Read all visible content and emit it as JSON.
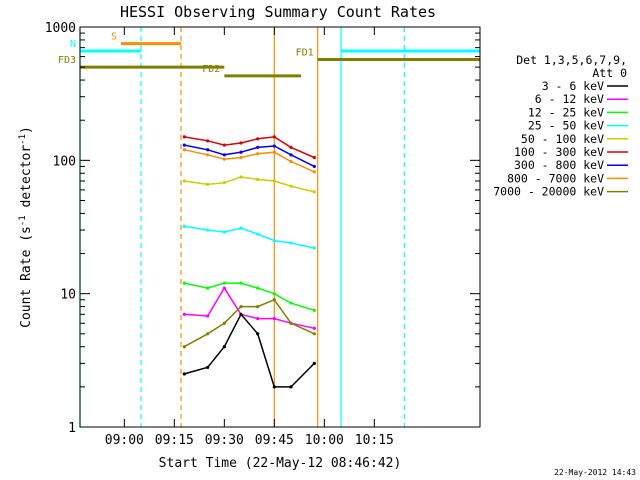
{
  "chart_data": {
    "type": "line",
    "title": "HESSI Observing Summary Count Rates",
    "xlabel": "Start Time (22-May-12 08:46:42)",
    "ylabel": "Count Rate (s⁻¹ detector⁻¹)",
    "ylabel_base": "Count Rate (s",
    "ylabel_sup1": "-1",
    "ylabel_mid": " detector",
    "ylabel_sup2": "-1",
    "ylabel_end": ")",
    "y_scale": "log",
    "ylim": [
      1,
      1000
    ],
    "xlim": [
      "08:46:42",
      "10:46:42"
    ],
    "x_ticks": [
      "09:00",
      "09:15",
      "09:30",
      "09:45",
      "10:00",
      "10:15"
    ],
    "y_ticks": [
      "1",
      "10",
      "100",
      "1000"
    ],
    "grid": false,
    "legend": {
      "placement": "right",
      "header": [
        "Det 1,3,5,6,7,9,",
        "Att 0"
      ],
      "entries": [
        {
          "label": "3 - 6 keV",
          "color": "#000000"
        },
        {
          "label": "6 - 12 keV",
          "color": "#ff00ff"
        },
        {
          "label": "12 - 25 keV",
          "color": "#00ff00"
        },
        {
          "label": "25 - 50 keV",
          "color": "#00ffff"
        },
        {
          "label": "50 - 100 keV",
          "color": "#cccc00"
        },
        {
          "label": "100 - 300 keV",
          "color": "#dd0000"
        },
        {
          "label": "300 - 800 keV",
          "color": "#0000ff"
        },
        {
          "label": "800 - 7000 keV",
          "color": "#ff8c00"
        },
        {
          "label": "7000 - 20000 keV",
          "color": "#808000"
        }
      ]
    },
    "vertical_markers": [
      {
        "time": "09:45",
        "color": "#ff8c00",
        "style": "solid"
      },
      {
        "time": "09:05",
        "color": "#00ffff",
        "style": "dashed"
      },
      {
        "time": "09:17",
        "color": "#ff8c00",
        "style": "dashed"
      },
      {
        "time": "10:05",
        "color": "#00ffff",
        "style": "solid"
      },
      {
        "time": "10:24",
        "color": "#00ffff",
        "style": "dashed"
      },
      {
        "time": "08:46:42",
        "color": "#00ffff",
        "style": "solid"
      },
      {
        "time": "09:58",
        "color": "#ff8c00",
        "style": "solid"
      }
    ],
    "interval_bars": [
      {
        "label": "S",
        "color": "#ff8c00",
        "start": "08:59",
        "end": "09:17",
        "level": 750
      },
      {
        "label": "N",
        "color": "#00ffff",
        "start": "08:46:42",
        "end": "09:05",
        "level": 660
      },
      {
        "label": "",
        "color": "#00ffff",
        "start": "10:05",
        "end": "10:46:42",
        "level": 660
      },
      {
        "label": "FD3",
        "color": "#808000",
        "start": "08:46:42",
        "end": "09:30",
        "level": 500
      },
      {
        "label": "FD2",
        "color": "#808000",
        "start": "09:30",
        "end": "09:53",
        "level": 430
      },
      {
        "label": "FD1",
        "color": "#808000",
        "start": "09:58",
        "end": "10:46:42",
        "level": 570
      }
    ],
    "series": [
      {
        "name": "100 - 300 keV",
        "color": "#dd0000",
        "x": [
          "09:18",
          "09:25",
          "09:30",
          "09:35",
          "09:40",
          "09:45",
          "09:50",
          "09:57"
        ],
        "values": [
          150,
          140,
          130,
          135,
          145,
          150,
          125,
          105
        ]
      },
      {
        "name": "300 - 800 keV",
        "color": "#0000ff",
        "x": [
          "09:18",
          "09:25",
          "09:30",
          "09:35",
          "09:40",
          "09:45",
          "09:50",
          "09:57"
        ],
        "values": [
          130,
          120,
          110,
          115,
          125,
          128,
          110,
          90
        ]
      },
      {
        "name": "800 - 7000 keV",
        "color": "#ff8c00",
        "x": [
          "09:18",
          "09:25",
          "09:30",
          "09:35",
          "09:40",
          "09:45",
          "09:50",
          "09:57"
        ],
        "values": [
          120,
          110,
          102,
          105,
          112,
          115,
          98,
          82
        ]
      },
      {
        "name": "50 - 100 keV",
        "color": "#cccc00",
        "x": [
          "09:18",
          "09:25",
          "09:30",
          "09:35",
          "09:40",
          "09:45",
          "09:50",
          "09:57"
        ],
        "values": [
          70,
          66,
          68,
          75,
          72,
          70,
          64,
          58
        ]
      },
      {
        "name": "25 - 50 keV",
        "color": "#00ffff",
        "x": [
          "09:18",
          "09:25",
          "09:30",
          "09:35",
          "09:40",
          "09:45",
          "09:50",
          "09:57"
        ],
        "values": [
          32,
          30,
          29,
          31,
          28,
          25,
          24,
          22
        ]
      },
      {
        "name": "12 - 25 keV",
        "color": "#00ff00",
        "x": [
          "09:18",
          "09:25",
          "09:30",
          "09:35",
          "09:40",
          "09:45",
          "09:50",
          "09:57"
        ],
        "values": [
          12,
          11,
          12,
          12,
          11,
          10,
          8.5,
          7.5
        ]
      },
      {
        "name": "6 - 12 keV",
        "color": "#ff00ff",
        "x": [
          "09:18",
          "09:25",
          "09:30",
          "09:35",
          "09:40",
          "09:45",
          "09:50",
          "09:57"
        ],
        "values": [
          7,
          6.8,
          11,
          7,
          6.5,
          6.5,
          6,
          5.5
        ]
      },
      {
        "name": "7000 - 20000 keV",
        "color": "#808000",
        "x": [
          "09:18",
          "09:25",
          "09:30",
          "09:35",
          "09:40",
          "09:45",
          "09:50",
          "09:57"
        ],
        "values": [
          4,
          5,
          6,
          8,
          8,
          9,
          6,
          5
        ]
      },
      {
        "name": "3 - 6 keV",
        "color": "#000000",
        "x": [
          "09:18",
          "09:25",
          "09:30",
          "09:35",
          "09:40",
          "09:45",
          "09:50",
          "09:57"
        ],
        "values": [
          2.5,
          2.8,
          4,
          7,
          5,
          2,
          2,
          3
        ]
      }
    ]
  },
  "footer_stamp": "22-May-2012 14:43"
}
